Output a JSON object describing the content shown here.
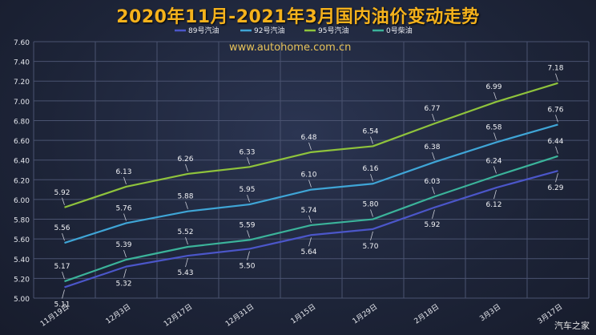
{
  "chart_data": {
    "type": "line",
    "title": "2020年11月-2021年3月国内油价变动走势",
    "categories": [
      "11月19日",
      "12月3日",
      "12月17日",
      "12月31日",
      "1月15日",
      "1月29日",
      "2月18日",
      "3月3日",
      "3月17日"
    ],
    "ylim": [
      5.0,
      7.6
    ],
    "yticks": [
      "5.00",
      "5.20",
      "5.40",
      "5.60",
      "5.80",
      "6.00",
      "6.20",
      "6.40",
      "6.60",
      "6.80",
      "7.00",
      "7.20",
      "7.40",
      "7.60"
    ],
    "grid": true,
    "legend_position": "top",
    "series": [
      {
        "name": "89号汽油",
        "color": "#4b56c9",
        "label_side": "below",
        "values": [
          5.11,
          5.32,
          5.43,
          5.5,
          5.64,
          5.7,
          5.92,
          6.12,
          6.29
        ],
        "labels": [
          "5.11",
          "5.32",
          "5.43",
          "5.50",
          "5.64",
          "5.70",
          "5.92",
          "6.12",
          "6.29"
        ]
      },
      {
        "name": "92号汽油",
        "color": "#3fa5d6",
        "label_side": "above",
        "values": [
          5.56,
          5.76,
          5.88,
          5.95,
          6.1,
          6.16,
          6.38,
          6.58,
          6.76
        ],
        "labels": [
          "5.56",
          "5.76",
          "5.88",
          "5.95",
          "6.10",
          "6.16",
          "6.38",
          "6.58",
          "6.76"
        ]
      },
      {
        "name": "95号汽油",
        "color": "#8fc33c",
        "label_side": "above",
        "values": [
          5.92,
          6.13,
          6.26,
          6.33,
          6.48,
          6.54,
          6.77,
          6.99,
          7.18
        ],
        "labels": [
          "5.92",
          "6.13",
          "6.26",
          "6.33",
          "6.48",
          "6.54",
          "6.77",
          "6.99",
          "7.18"
        ]
      },
      {
        "name": "0号柴油",
        "color": "#3bb39a",
        "label_side": "above",
        "values": [
          5.17,
          5.39,
          5.52,
          5.59,
          5.74,
          5.8,
          6.03,
          6.24,
          6.44
        ],
        "labels": [
          "5.17",
          "5.39",
          "5.52",
          "5.59",
          "5.74",
          "5.80",
          "6.03",
          "6.24",
          "6.44"
        ]
      }
    ]
  },
  "watermark": "www.autohome.com.cn",
  "logo_text": "汽车之家"
}
